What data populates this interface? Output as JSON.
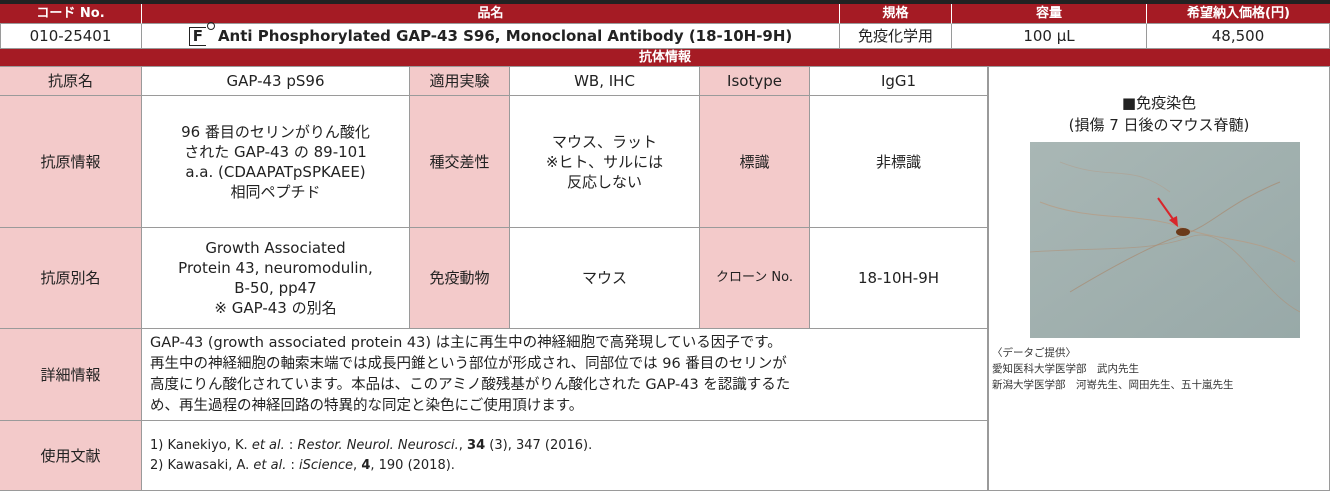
{
  "header": {
    "code": "コード No.",
    "name": "品名",
    "spec": "規格",
    "volume": "容量",
    "price": "希望納入価格(円)"
  },
  "product": {
    "code": "010-25401",
    "icon": "F",
    "name": "Anti Phosphorylated GAP-43 S96, Monoclonal Antibody (18-10H-9H)",
    "spec": "免疫化学用",
    "volume": "100 μL",
    "price": "48,500"
  },
  "section_title": "抗体情報",
  "antigen_name": {
    "label": "抗原名",
    "value": "GAP-43 pS96"
  },
  "application": {
    "label": "適用実験",
    "value": "WB, IHC"
  },
  "isotype": {
    "label": "Isotype",
    "value": "IgG1"
  },
  "antigen_info": {
    "label": "抗原情報",
    "lines": [
      "96 番目のセリンがりん酸化",
      "された GAP-43 の 89-101",
      "a.a. (CDAAPATpSPKAEE)",
      "相同ペプチド"
    ]
  },
  "cross_reactivity": {
    "label": "種交差性",
    "lines": [
      "マウス、ラット",
      "※ヒト、サルには",
      "反応しない"
    ]
  },
  "labeling": {
    "label": "標識",
    "value": "非標識"
  },
  "alias": {
    "label": "抗原別名",
    "lines": [
      "Growth Associated",
      "Protein 43, neuromodulin,",
      "B-50, pp47",
      "※ GAP-43 の別名"
    ]
  },
  "host": {
    "label": "免疫動物",
    "value": "マウス"
  },
  "clone": {
    "label": "クローン No.",
    "value": "18-10H-9H"
  },
  "details": {
    "label": "詳細情報",
    "lines": [
      "GAP-43 (growth associated protein 43) は主に再生中の神経細胞で高発現している因子です。",
      "再生中の神経細胞の軸索末端では成長円錐という部位が形成され、同部位では 96 番目のセリンが",
      "高度にりん酸化されています。本品は、このアミノ酸残基がりん酸化された GAP-43 を認識するた",
      "め、再生過程の神経回路の特異的な同定と染色にご使用頂けます。"
    ]
  },
  "references": {
    "label": "使用文献",
    "items": [
      [
        "1) Kanekiyo, K. ",
        "et al.",
        " : ",
        "Restor. Neurol. Neurosci.",
        ", ",
        "34",
        " (3), 347 (2016)."
      ],
      [
        "2) Kawasaki, A. ",
        "et al.",
        " : ",
        "iScience",
        ", ",
        "4",
        ", 190 (2018)."
      ]
    ]
  },
  "image": {
    "title": "■免疫染色",
    "subtitle": "(損傷 7 日後のマウス脊髄)",
    "credits": [
      "〈データご提供〉",
      "愛知医科大学医学部　武内先生",
      "新潟大学医学部　河嵜先生、岡田先生、五十嵐先生"
    ]
  }
}
